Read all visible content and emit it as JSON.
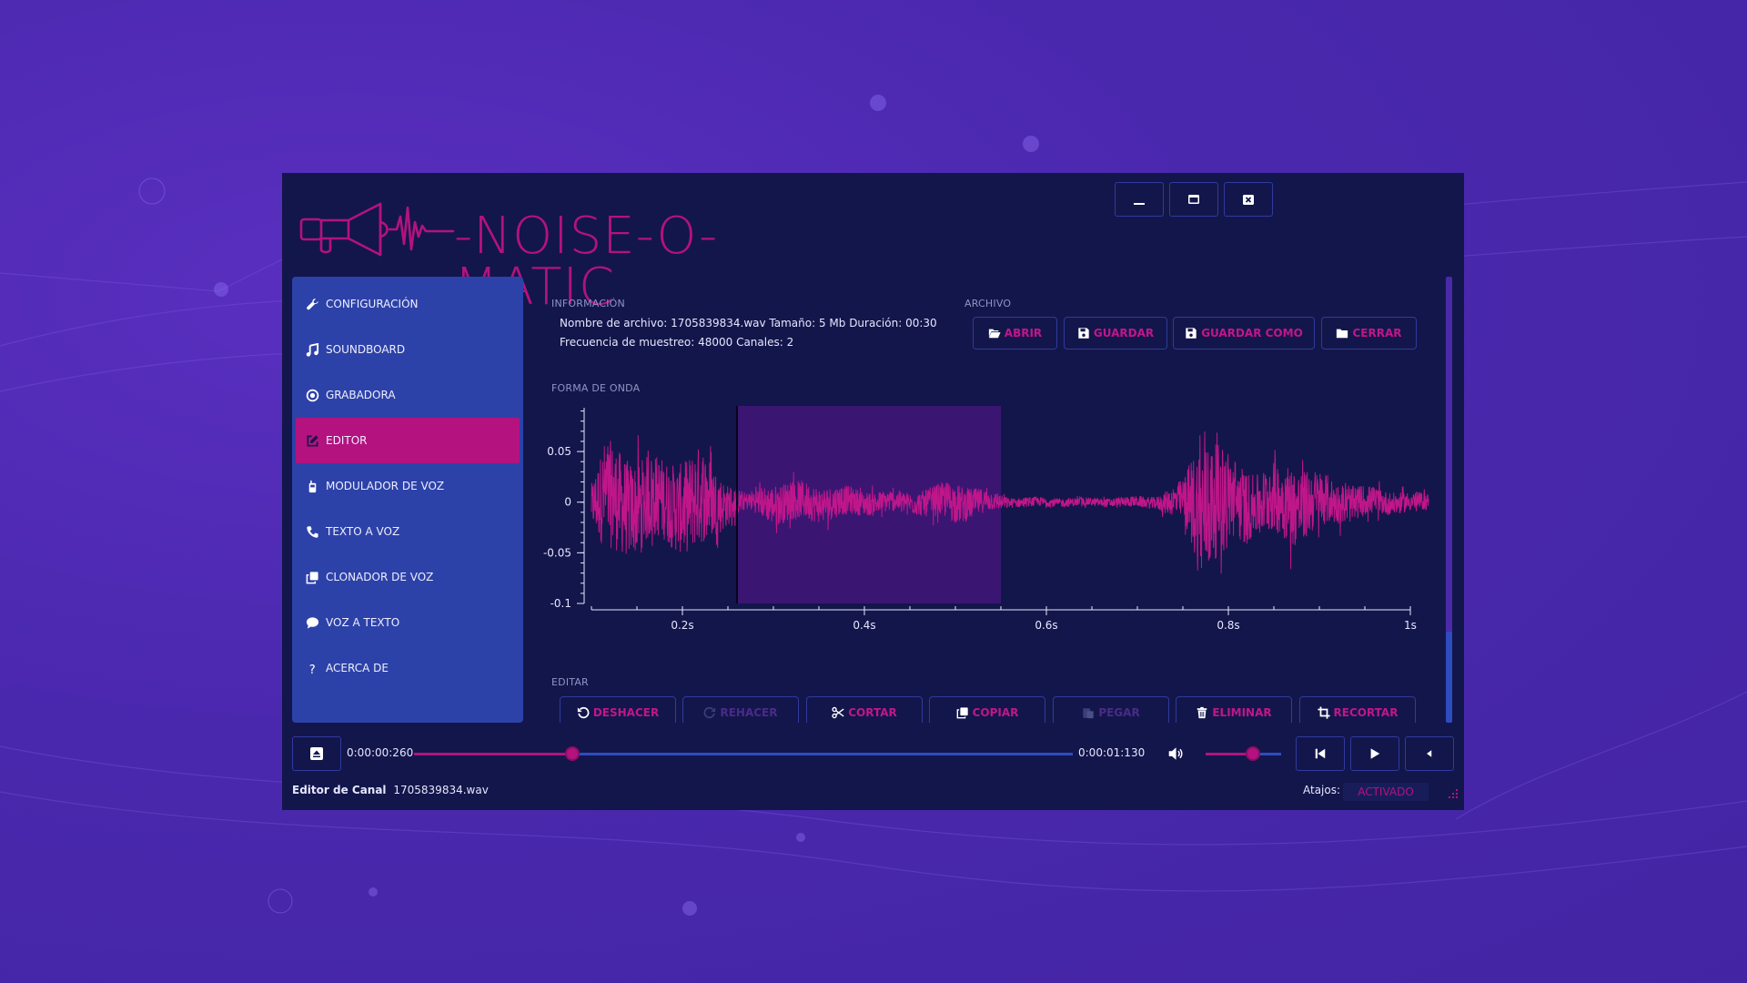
{
  "app": {
    "logo_text": "-NOISE-O-MATIC",
    "colors": {
      "accent": "#b3127f",
      "window_bg": "#13164a",
      "sidebar_bg": "#2d42a8",
      "border": "#2f3a9c",
      "desktop_bg": "#4a28ae"
    }
  },
  "window_controls": {
    "minimize_icon": "minimize-icon",
    "maximize_icon": "maximize-icon",
    "close_icon": "close-icon"
  },
  "sidebar": {
    "items": [
      {
        "label": "CONFIGURACIÓN",
        "icon": "wrench-icon",
        "active": false
      },
      {
        "label": "SOUNDBOARD",
        "icon": "music-icon",
        "active": false
      },
      {
        "label": "GRABADORA",
        "icon": "record-icon",
        "active": false
      },
      {
        "label": "EDITOR",
        "icon": "edit-icon",
        "active": true
      },
      {
        "label": "MODULADOR DE VOZ",
        "icon": "walkie-talkie-icon",
        "active": false
      },
      {
        "label": "TEXTO A VOZ",
        "icon": "phone-icon",
        "active": false
      },
      {
        "label": "CLONADOR DE VOZ",
        "icon": "clone-icon",
        "active": false
      },
      {
        "label": "VOZ A TEXTO",
        "icon": "chat-icon",
        "active": false
      },
      {
        "label": "ACERCA DE",
        "icon": "question-icon",
        "active": false
      }
    ]
  },
  "info": {
    "section_label": "INFORMACIÓN",
    "line1": "Nombre de archivo: 1705839834.wav Tamaño: 5 Mb Duración: 00:30",
    "line2": "Frecuencia de muestreo: 48000 Canales: 2"
  },
  "file": {
    "section_label": "ARCHIVO",
    "buttons": [
      {
        "label": "ABRIR",
        "icon": "folder-open-icon"
      },
      {
        "label": "GUARDAR",
        "icon": "save-icon"
      },
      {
        "label": "GUARDAR COMO",
        "icon": "save-as-icon"
      },
      {
        "label": "CERRAR",
        "icon": "folder-icon"
      }
    ]
  },
  "waveform": {
    "section_label": "FORMA DE ONDA"
  },
  "chart_data": {
    "type": "line",
    "title": "",
    "xlabel": "",
    "ylabel": "",
    "xlim": [
      0.1,
      1.03
    ],
    "ylim": [
      -0.1,
      0.095
    ],
    "y_ticks": [
      0.05,
      0,
      -0.05,
      -0.1
    ],
    "y_tick_labels": [
      "0.05",
      "0",
      "-0.05",
      "-0.1"
    ],
    "x_ticks": [
      0.2,
      0.4,
      0.6,
      0.8,
      1.0
    ],
    "x_tick_labels": [
      "0.2s",
      "0.4s",
      "0.6s",
      "0.8s",
      "1s"
    ],
    "cursor_x": 0.26,
    "selection": [
      0.26,
      0.55
    ],
    "series": [
      {
        "color": "#c0168a",
        "envelope": [
          {
            "x": 0.1,
            "amp": 0.02
          },
          {
            "x": 0.115,
            "amp": 0.055
          },
          {
            "x": 0.15,
            "amp": 0.045
          },
          {
            "x": 0.18,
            "amp": 0.04
          },
          {
            "x": 0.22,
            "amp": 0.05
          },
          {
            "x": 0.25,
            "amp": 0.02
          },
          {
            "x": 0.27,
            "amp": 0.008
          },
          {
            "x": 0.3,
            "amp": 0.02
          },
          {
            "x": 0.35,
            "amp": 0.018
          },
          {
            "x": 0.4,
            "amp": 0.012
          },
          {
            "x": 0.45,
            "amp": 0.01
          },
          {
            "x": 0.5,
            "amp": 0.02
          },
          {
            "x": 0.53,
            "amp": 0.012
          },
          {
            "x": 0.56,
            "amp": 0.005
          },
          {
            "x": 0.65,
            "amp": 0.004
          },
          {
            "x": 0.72,
            "amp": 0.006
          },
          {
            "x": 0.75,
            "amp": 0.02
          },
          {
            "x": 0.77,
            "amp": 0.07
          },
          {
            "x": 0.8,
            "amp": 0.045
          },
          {
            "x": 0.83,
            "amp": 0.03
          },
          {
            "x": 0.87,
            "amp": 0.04
          },
          {
            "x": 0.92,
            "amp": 0.02
          },
          {
            "x": 0.97,
            "amp": 0.012
          },
          {
            "x": 1.02,
            "amp": 0.008
          }
        ]
      }
    ]
  },
  "edit": {
    "section_label": "EDITAR",
    "buttons": [
      {
        "label": "DESHACER",
        "icon": "undo-icon",
        "disabled": false
      },
      {
        "label": "REHACER",
        "icon": "redo-icon",
        "disabled": true
      },
      {
        "label": "CORTAR",
        "icon": "scissors-icon",
        "disabled": false
      },
      {
        "label": "COPIAR",
        "icon": "copy-icon",
        "disabled": false
      },
      {
        "label": "PEGAR",
        "icon": "paste-icon",
        "disabled": true
      },
      {
        "label": "ELIMINAR",
        "icon": "trash-icon",
        "disabled": false
      },
      {
        "label": "RECORTAR",
        "icon": "crop-icon",
        "disabled": false
      }
    ]
  },
  "player": {
    "current_time": "0:00:00:260",
    "total_time": "0:00:01:130",
    "progress_fraction": 0.24,
    "volume_fraction": 0.63,
    "eject_icon": "eject-icon",
    "volume_icon": "volume-icon",
    "prev_icon": "skip-back-icon",
    "play_icon": "play-icon",
    "reverse_icon": "reverse-icon"
  },
  "status": {
    "title": "Editor de Canal",
    "filename": "1705839834.wav",
    "shortcuts_label": "Atajos:",
    "shortcuts_value": "ACTIVADO"
  }
}
